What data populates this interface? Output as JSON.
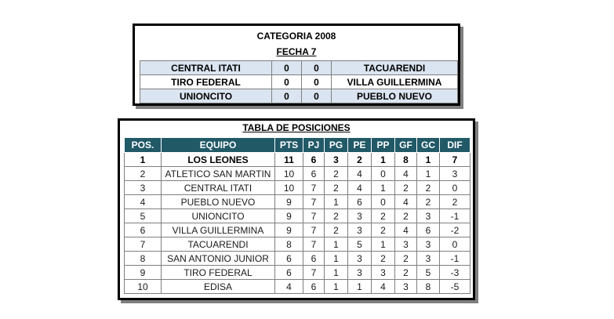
{
  "results": {
    "category": "CATEGORIA 2008",
    "round": "FECHA 7",
    "matches": [
      {
        "home": "CENTRAL ITATI",
        "home_goals": "0",
        "away_goals": "0",
        "away": "TACUARENDI"
      },
      {
        "home": "TIRO FEDERAL",
        "home_goals": "0",
        "away_goals": "0",
        "away": "VILLA GUILLERMINA"
      },
      {
        "home": "UNIONCITO",
        "home_goals": "0",
        "away_goals": "0",
        "away": "PUEBLO NUEVO"
      }
    ]
  },
  "standings": {
    "title": "TABLA DE POSICIONES",
    "headers": [
      "POS.",
      "EQUIPO",
      "PTS",
      "PJ",
      "PG",
      "PE",
      "PP",
      "GF",
      "GC",
      "DIF"
    ],
    "rows": [
      [
        "1",
        "LOS LEONES",
        "11",
        "6",
        "3",
        "2",
        "1",
        "8",
        "1",
        "7"
      ],
      [
        "2",
        "ATLETICO SAN MARTIN",
        "10",
        "6",
        "2",
        "4",
        "0",
        "4",
        "1",
        "3"
      ],
      [
        "3",
        "CENTRAL ITATI",
        "10",
        "7",
        "2",
        "4",
        "1",
        "2",
        "2",
        "0"
      ],
      [
        "4",
        "PUEBLO NUEVO",
        "9",
        "7",
        "1",
        "6",
        "0",
        "4",
        "2",
        "2"
      ],
      [
        "5",
        "UNIONCITO",
        "9",
        "7",
        "2",
        "3",
        "2",
        "2",
        "3",
        "-1"
      ],
      [
        "6",
        "VILLA GUILLERMINA",
        "9",
        "7",
        "2",
        "3",
        "2",
        "4",
        "6",
        "-2"
      ],
      [
        "7",
        "TACUARENDI",
        "8",
        "7",
        "1",
        "5",
        "1",
        "3",
        "3",
        "0"
      ],
      [
        "8",
        "SAN ANTONIO JUNIOR",
        "6",
        "6",
        "1",
        "3",
        "2",
        "2",
        "3",
        "-1"
      ],
      [
        "9",
        "TIRO FEDERAL",
        "6",
        "7",
        "1",
        "3",
        "3",
        "2",
        "5",
        "-3"
      ],
      [
        "10",
        "EDISA",
        "4",
        "6",
        "1",
        "1",
        "4",
        "3",
        "8",
        "-5"
      ]
    ]
  }
}
